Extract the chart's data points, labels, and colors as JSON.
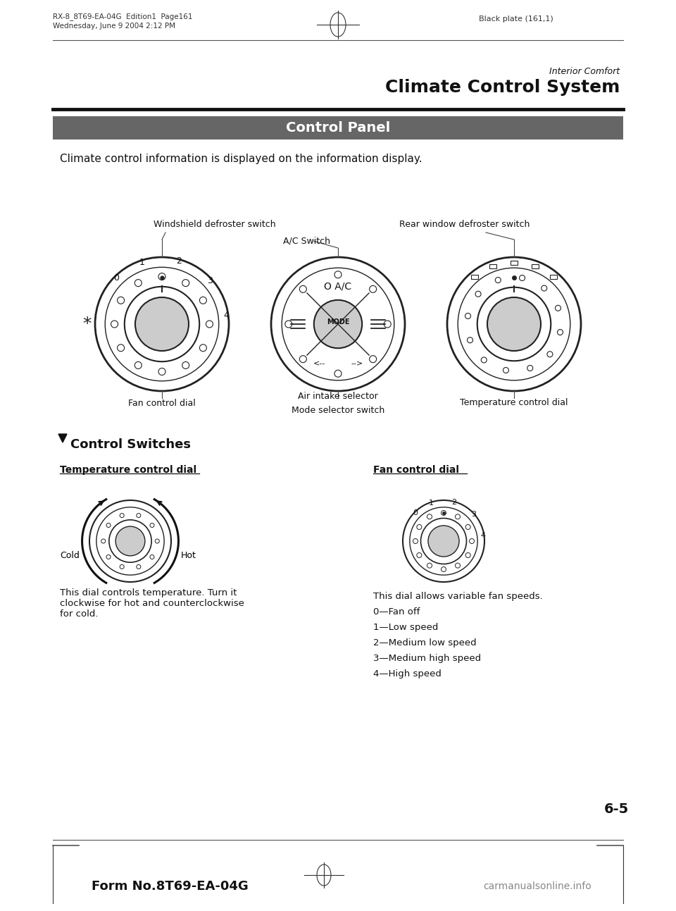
{
  "bg_color": "#ffffff",
  "page_width": 9.6,
  "page_height": 12.93,
  "header_left_line1": "RX-8_8T69-EA-04G  Edition1  Page161",
  "header_left_line2": "Wednesday, June 9 2004 2:12 PM",
  "header_center": "Black plate (161,1)",
  "section_label": "Interior Comfort",
  "section_title": "Climate Control System",
  "panel_title": "Control Panel",
  "panel_title_bg": "#666666",
  "panel_title_color": "#ffffff",
  "intro_text": "Climate control information is displayed on the information display.",
  "label_windshield": "Windshield defroster switch",
  "label_rear_window": "Rear window defroster switch",
  "label_ac_switch": "A/C Switch",
  "label_fan_dial": "Fan control dial",
  "label_air_intake": "Air intake selector",
  "label_temp_dial": "Temperature control dial",
  "label_mode_switch": "Mode selector switch",
  "section2_title": "Control Switches",
  "sub_title1": "Temperature control dial",
  "sub_title2": "Fan control dial",
  "cold_label": "Cold",
  "hot_label": "Hot",
  "temp_desc": "This dial controls temperature. Turn it\nclockwise for hot and counterclockwise\nfor cold.",
  "fan_desc_line0": "This dial allows variable fan speeds.",
  "fan_desc_line1": "0—Fan off",
  "fan_desc_line2": "1—Low speed",
  "fan_desc_line3": "2—Medium low speed",
  "fan_desc_line4": "3—Medium high speed",
  "fan_desc_line5": "4—High speed",
  "page_number": "6-5",
  "footer_left": "Form No.8T69-EA-04G",
  "footer_right": "carmanualsonline.info"
}
